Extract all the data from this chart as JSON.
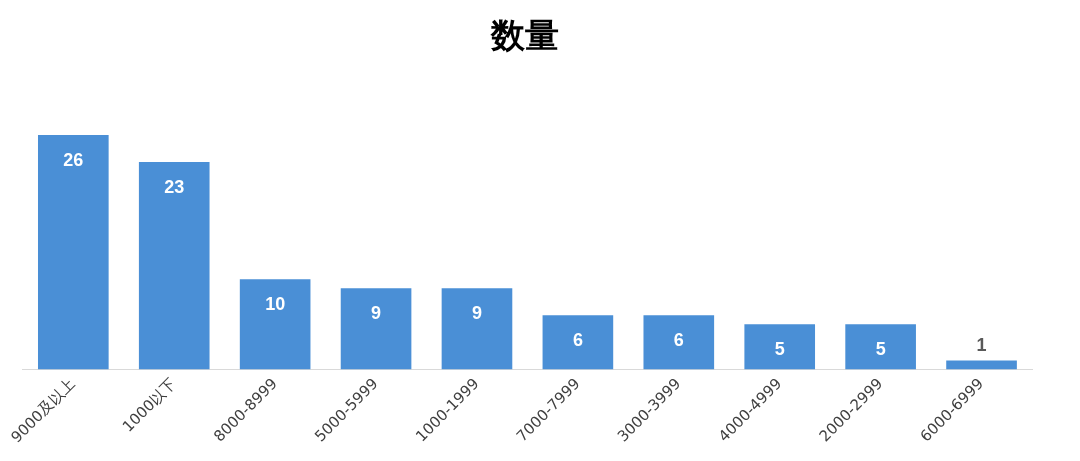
{
  "chart_data": {
    "type": "bar",
    "title": "数量",
    "categories": [
      "9000及以上",
      "1000以下",
      "8000-8999",
      "5000-5999",
      "1000-1999",
      "7000-7999",
      "3000-3999",
      "4000-4999",
      "2000-2999",
      "6000-6999"
    ],
    "values": [
      26,
      23,
      10,
      9,
      9,
      6,
      6,
      5,
      5,
      1
    ],
    "color": "#4a8fd6",
    "data_labels": true,
    "grid": false,
    "legend": false
  }
}
